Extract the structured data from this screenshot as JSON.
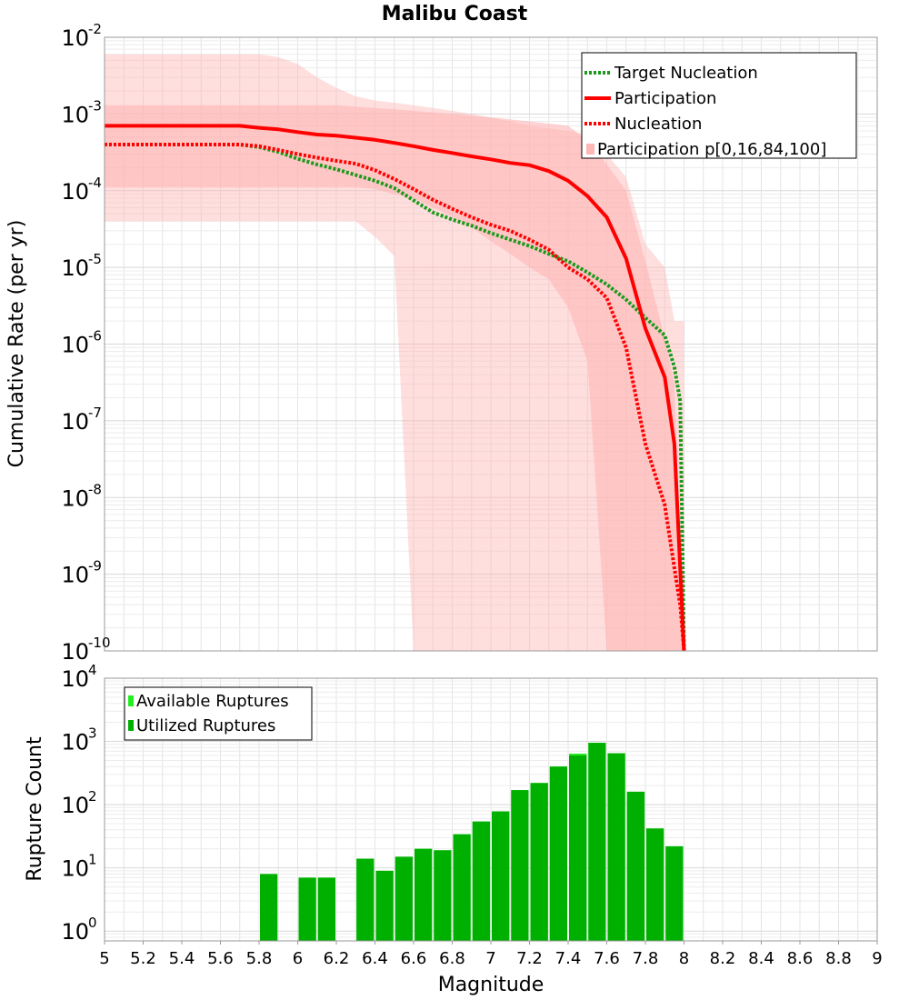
{
  "chart_data": [
    {
      "type": "line",
      "title": "Malibu Coast",
      "xlabel": "",
      "ylabel": "Cumulative Rate (per yr)",
      "xlim": [
        5,
        9
      ],
      "ylim": [
        1e-10,
        0.01
      ],
      "yscale": "log",
      "y_tick_base": "10",
      "y_tick_exponents": [
        "-10",
        "-9",
        "-8",
        "-7",
        "-6",
        "-5",
        "-4",
        "-3",
        "-2"
      ],
      "grid": true,
      "legend_position": "top-right",
      "series": [
        {
          "name": "Target Nucleation",
          "style": "dotted",
          "color": "#1a9a1a",
          "x": [
            5.0,
            5.5,
            5.7,
            5.8,
            5.9,
            6.0,
            6.1,
            6.2,
            6.3,
            6.4,
            6.5,
            6.6,
            6.7,
            6.8,
            6.9,
            7.0,
            7.1,
            7.2,
            7.3,
            7.4,
            7.5,
            7.6,
            7.7,
            7.8,
            7.9,
            7.95,
            7.98,
            8.0
          ],
          "y": [
            0.0004,
            0.0004,
            0.0004,
            0.00037,
            0.00032,
            0.00026,
            0.00022,
            0.00019,
            0.00016,
            0.000135,
            0.000108,
            7.5e-05,
            5.2e-05,
            4.2e-05,
            3.5e-05,
            2.8e-05,
            2.3e-05,
            1.9e-05,
            1.5e-05,
            1.2e-05,
            8.6e-06,
            6e-06,
            3.8e-06,
            2.2e-06,
            1.3e-06,
            5e-07,
            1.8e-07,
            1e-10
          ]
        },
        {
          "name": "Participation",
          "style": "solid",
          "color": "#ff0000",
          "x": [
            5.0,
            5.5,
            5.7,
            5.8,
            5.9,
            6.0,
            6.1,
            6.2,
            6.3,
            6.4,
            6.5,
            6.6,
            6.7,
            6.8,
            6.9,
            7.0,
            7.1,
            7.2,
            7.3,
            7.4,
            7.5,
            7.6,
            7.7,
            7.8,
            7.9,
            7.95,
            8.0
          ],
          "y": [
            0.0007,
            0.0007,
            0.0007,
            0.00066,
            0.00063,
            0.00058,
            0.00054,
            0.00052,
            0.00049,
            0.00046,
            0.00042,
            0.00038,
            0.00034,
            0.00031,
            0.00028,
            0.000256,
            0.00023,
            0.000215,
            0.00018,
            0.000135,
            8.5e-05,
            4.5e-05,
            1.3e-05,
            1.6e-06,
            3.7e-07,
            5e-08,
            1e-10
          ]
        },
        {
          "name": "Nucleation",
          "style": "dotted",
          "color": "#ff0000",
          "x": [
            5.0,
            5.5,
            5.7,
            5.8,
            5.9,
            6.0,
            6.1,
            6.2,
            6.3,
            6.4,
            6.5,
            6.6,
            6.7,
            6.8,
            6.9,
            7.0,
            7.1,
            7.2,
            7.3,
            7.4,
            7.5,
            7.6,
            7.7,
            7.8,
            7.9,
            7.95,
            7.98,
            8.0
          ],
          "y": [
            0.0004,
            0.0004,
            0.0004,
            0.00038,
            0.00034,
            0.0003,
            0.00027,
            0.000245,
            0.000225,
            0.000185,
            0.000142,
            0.000105,
            7.6e-05,
            5.8e-05,
            4.5e-05,
            3.6e-05,
            3e-05,
            2.3e-05,
            1.7e-05,
            1e-05,
            7e-06,
            4e-06,
            9e-07,
            5e-08,
            8e-09,
            1.2e-09,
            4e-10,
            1e-10
          ]
        },
        {
          "name": "Participation p[0,16,84,100]",
          "style": "band",
          "color": "#ffb6b6",
          "x": [
            5.0,
            5.5,
            5.7,
            5.8,
            5.9,
            6.0,
            6.1,
            6.2,
            6.3,
            6.4,
            6.5,
            6.6,
            6.7,
            6.8,
            6.9,
            7.0,
            7.1,
            7.2,
            7.3,
            7.4,
            7.5,
            7.6,
            7.7,
            7.8,
            7.9,
            7.95,
            8.0
          ],
          "p0": [
            4e-05,
            4e-05,
            4e-05,
            4e-05,
            4e-05,
            4e-05,
            4e-05,
            4e-05,
            4e-05,
            2.5e-05,
            1.4e-05,
            1e-10,
            1e-10,
            1e-10,
            1e-10,
            1e-10,
            1e-10,
            1e-10,
            1e-10,
            1e-10,
            1e-10,
            1e-10,
            1e-10,
            1e-10,
            1e-10,
            1e-10,
            1e-10
          ],
          "p16": [
            0.00011,
            0.00011,
            0.00011,
            0.00011,
            0.00011,
            0.00011,
            0.00011,
            0.00011,
            0.00011,
            0.000105,
            9e-05,
            8e-05,
            6e-05,
            4.6e-05,
            3.3e-05,
            2.2e-05,
            1.5e-05,
            1e-05,
            7e-06,
            3e-06,
            6e-07,
            1e-10,
            1e-10,
            1e-10,
            1e-10,
            1e-10,
            1e-10
          ],
          "p84": [
            0.0013,
            0.0013,
            0.0013,
            0.0013,
            0.0013,
            0.0013,
            0.0013,
            0.0013,
            0.00125,
            0.0012,
            0.00115,
            0.0011,
            0.00105,
            0.001,
            0.00095,
            0.0009,
            0.00085,
            0.0008,
            0.00075,
            0.0007,
            0.00045,
            0.00022,
            0.0001,
            1.2e-05,
            1.2e-06,
            3e-07,
            1e-10
          ],
          "p100": [
            0.006,
            0.006,
            0.006,
            0.006,
            0.0055,
            0.0045,
            0.003,
            0.0022,
            0.0017,
            0.0015,
            0.0014,
            0.0013,
            0.0012,
            0.0011,
            0.001,
            0.0009,
            0.0008,
            0.0007,
            0.00065,
            0.0006,
            0.00055,
            0.0003,
            0.00015,
            2e-05,
            1e-05,
            2e-06,
            2e-06
          ]
        }
      ]
    },
    {
      "type": "bar",
      "title": "",
      "xlabel": "Magnitude",
      "ylabel": "Rupture Count",
      "xlim": [
        5,
        9
      ],
      "ylim": [
        0.7,
        10000
      ],
      "yscale": "log",
      "y_tick_base": "10",
      "y_tick_exponents": [
        "0",
        "1",
        "2",
        "3",
        "4"
      ],
      "x_ticks": [
        "5",
        "5.2",
        "5.4",
        "5.6",
        "5.8",
        "6",
        "6.2",
        "6.4",
        "6.6",
        "6.8",
        "7",
        "7.2",
        "7.4",
        "7.6",
        "7.8",
        "8",
        "8.2",
        "8.4",
        "8.6",
        "8.8",
        "9"
      ],
      "bar_width": 0.1,
      "grid": true,
      "legend_position": "top-left",
      "series": [
        {
          "name": "Available Ruptures",
          "color": "#22ee22",
          "x": [
            5.85,
            6.05,
            6.15,
            6.35,
            6.45,
            6.55,
            6.65,
            6.75,
            6.85,
            6.95,
            7.05,
            7.15,
            7.25,
            7.35,
            7.45,
            7.55,
            7.65,
            7.75,
            7.85,
            7.95
          ],
          "values": [
            8,
            7,
            7,
            14,
            9,
            15,
            20,
            19,
            34,
            54,
            78,
            170,
            220,
            400,
            640,
            950,
            650,
            160,
            42,
            22
          ]
        },
        {
          "name": "Utilized Ruptures",
          "color": "#00b000",
          "x": [
            5.85,
            6.05,
            6.15,
            6.35,
            6.45,
            6.55,
            6.65,
            6.75,
            6.85,
            6.95,
            7.05,
            7.15,
            7.25,
            7.35,
            7.45,
            7.55,
            7.65,
            7.75,
            7.85,
            7.95
          ],
          "values": [
            8,
            7,
            7,
            14,
            9,
            15,
            20,
            19,
            34,
            54,
            78,
            170,
            220,
            400,
            600,
            950,
            650,
            160,
            42,
            22
          ]
        }
      ]
    }
  ]
}
